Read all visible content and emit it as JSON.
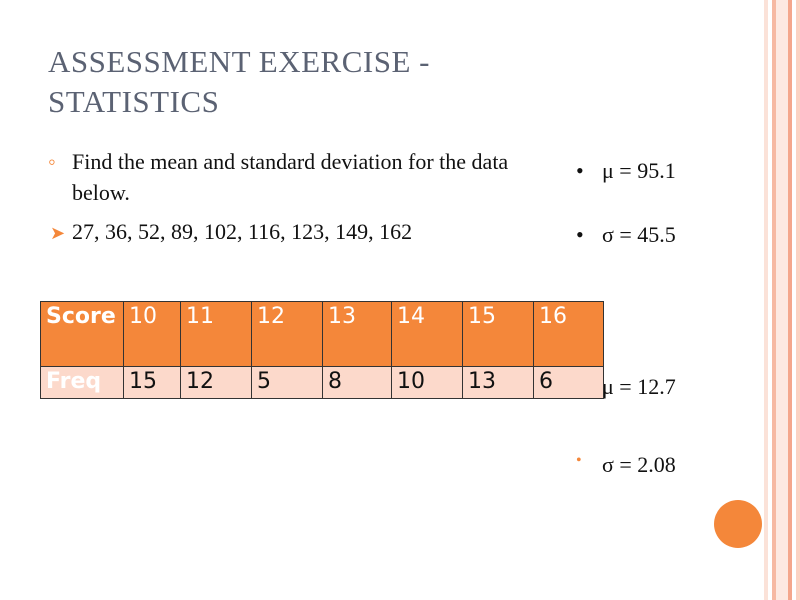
{
  "title": "ASSESSMENT EXERCISE - STATISTICS",
  "bullets": [
    "Find the mean and standard deviation for the data below.",
    "27, 36, 52, 89, 102, 116, 123, 149, 162"
  ],
  "results": [
    "μ = 95.1",
    "σ = 45.5",
    "μ = 12.7",
    "σ = 2.08"
  ],
  "table": {
    "rows": [
      [
        "Score",
        "10",
        "11",
        "12",
        "13",
        "14",
        "15",
        "16"
      ],
      [
        "Freq",
        "15",
        "12",
        "5",
        "8",
        "10",
        "13",
        "6"
      ]
    ]
  }
}
